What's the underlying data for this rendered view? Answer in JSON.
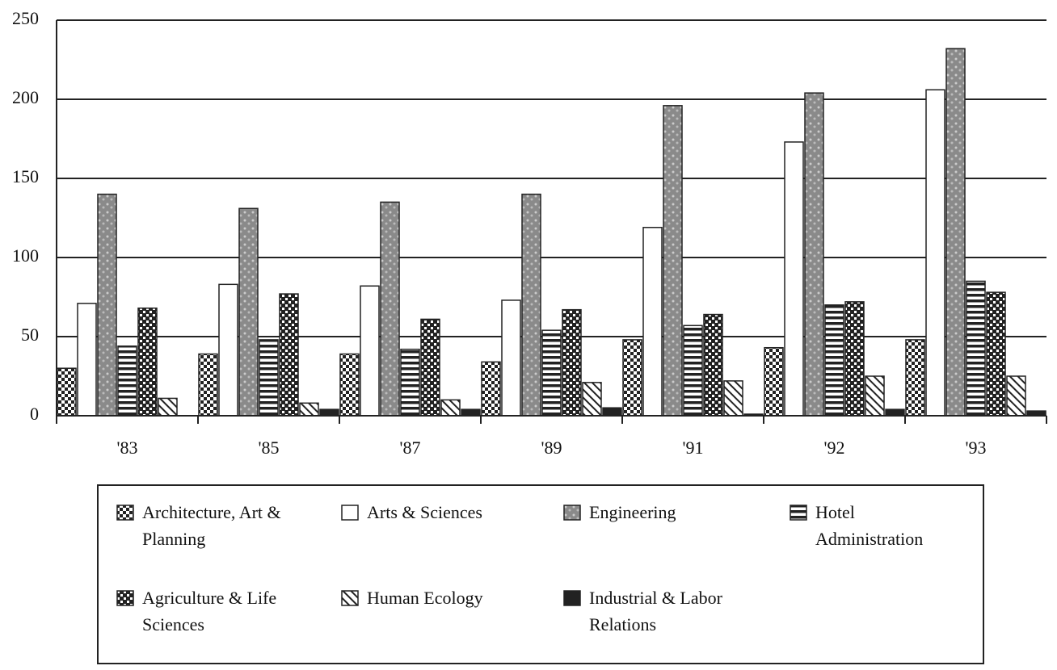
{
  "chart_data": {
    "type": "bar",
    "categories": [
      "'83",
      "'85",
      "'87",
      "'89",
      "'91",
      "'92",
      "'93"
    ],
    "series": [
      {
        "name": "Architecture, Art & Planning",
        "color": "#333333",
        "pattern": "checker",
        "values": [
          30,
          39,
          39,
          34,
          48,
          43,
          48
        ]
      },
      {
        "name": "Arts & Sciences",
        "color": "#ffffff",
        "pattern": "solid",
        "values": [
          71,
          83,
          82,
          73,
          119,
          173,
          206
        ]
      },
      {
        "name": "Engineering",
        "color": "#999999",
        "pattern": "speckle",
        "values": [
          140,
          131,
          135,
          140,
          196,
          204,
          232
        ]
      },
      {
        "name": "Hotel Administration",
        "color": "#222222",
        "pattern": "hlines",
        "values": [
          44,
          48,
          42,
          54,
          57,
          70,
          85
        ]
      },
      {
        "name": "Agriculture & Life Sciences",
        "color": "#333333",
        "pattern": "finechecker",
        "values": [
          68,
          77,
          61,
          67,
          64,
          72,
          78
        ]
      },
      {
        "name": "Human Ecology",
        "color": "#333333",
        "pattern": "diagonal",
        "values": [
          11,
          8,
          10,
          21,
          22,
          25,
          25
        ]
      },
      {
        "name": "Industrial & Labor Relations",
        "color": "#222222",
        "pattern": "solid",
        "values": [
          0,
          4,
          4,
          5,
          1,
          4,
          3
        ]
      }
    ],
    "ylim": [
      0,
      250
    ],
    "yticks": [
      0,
      50,
      100,
      150,
      200,
      250
    ],
    "grid": true,
    "legend": "bottom"
  }
}
